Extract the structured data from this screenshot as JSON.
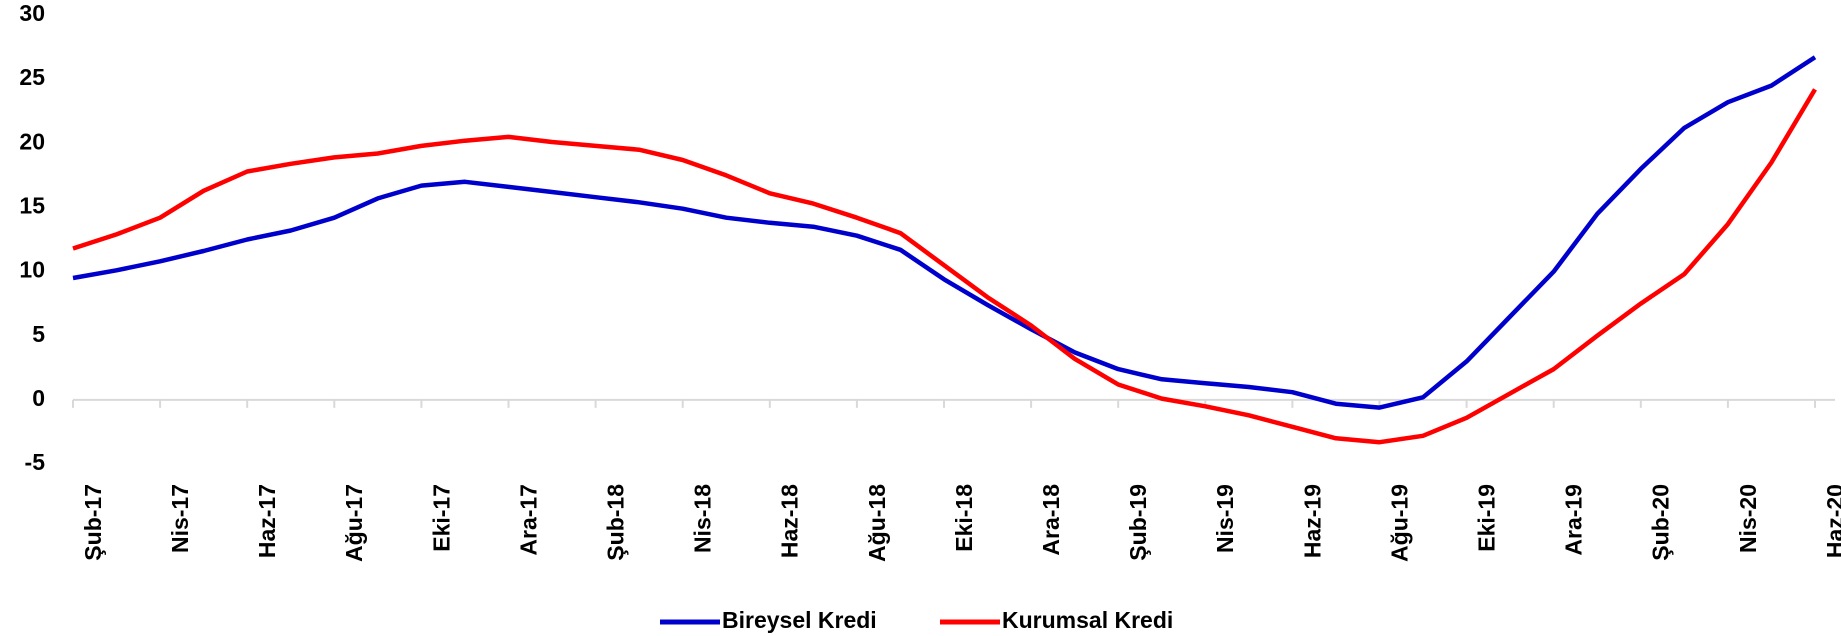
{
  "chart_data": {
    "type": "line",
    "categories": [
      "Şub-17",
      null,
      "Nis-17",
      null,
      "Haz-17",
      null,
      "Ağu-17",
      null,
      "Eki-17",
      null,
      "Ara-17",
      null,
      "Şub-18",
      null,
      "Nis-18",
      null,
      "Haz-18",
      null,
      "Ağu-18",
      null,
      "Eki-18",
      null,
      "Ara-18",
      null,
      "Şub-19",
      null,
      "Nis-19",
      null,
      "Haz-19",
      null,
      "Ağu-19",
      null,
      "Eki-19",
      null,
      "Ara-19",
      null,
      "Şub-20",
      null,
      "Nis-20",
      null,
      "Haz-20"
    ],
    "series": [
      {
        "name": "Bireysel Kredi",
        "color": "#0000cc",
        "values": [
          9.5,
          10.1,
          10.8,
          11.6,
          12.5,
          13.2,
          14.2,
          15.7,
          16.7,
          17.0,
          16.6,
          16.2,
          15.8,
          15.4,
          14.9,
          14.2,
          13.8,
          13.5,
          12.8,
          11.7,
          9.4,
          7.4,
          5.5,
          3.7,
          2.4,
          1.6,
          1.3,
          1.0,
          0.6,
          -0.3,
          -0.6,
          0.2,
          3.0,
          6.5,
          10.0,
          14.5,
          18.0,
          21.2,
          23.2,
          24.5,
          26.7
        ]
      },
      {
        "name": "Kurumsal Kredi",
        "color": "#ff0000",
        "values": [
          11.8,
          12.9,
          14.2,
          16.3,
          17.8,
          18.4,
          18.9,
          19.2,
          19.8,
          20.2,
          20.5,
          20.1,
          19.8,
          19.5,
          18.7,
          17.5,
          16.1,
          15.3,
          14.2,
          13.0,
          10.5,
          8.0,
          5.8,
          3.2,
          1.2,
          0.1,
          -0.5,
          -1.2,
          -2.1,
          -3.0,
          -3.3,
          -2.8,
          -1.4,
          0.5,
          2.4,
          5.0,
          7.5,
          9.8,
          13.7,
          18.5,
          24.2
        ]
      }
    ],
    "ylim": [
      -5,
      30
    ],
    "yticks": [
      -5,
      0,
      5,
      10,
      15,
      20,
      25,
      30
    ],
    "grid": false,
    "legend": "bottom"
  }
}
